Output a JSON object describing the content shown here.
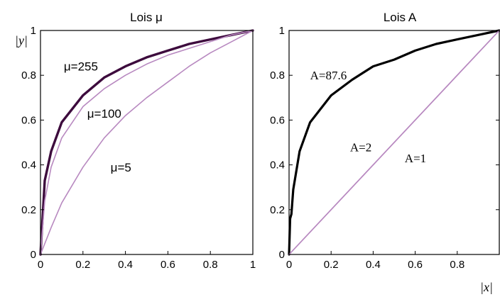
{
  "chart_data": [
    {
      "type": "line",
      "title": "Lois μ",
      "ylabel": "|y|",
      "xlabel": "",
      "xlim": [
        0,
        1
      ],
      "ylim": [
        0,
        1
      ],
      "xticks": [
        "0",
        "0.2",
        "0.4",
        "0.6",
        "0.8",
        "1"
      ],
      "yticks": [
        "0",
        "0.2",
        "0.4",
        "0.6",
        "0.8",
        "1"
      ],
      "grid": false,
      "series": [
        {
          "name": "μ=255",
          "mu": 255,
          "color": "#3d0b3d",
          "width": 3.4,
          "x": [
            0,
            0.02,
            0.05,
            0.1,
            0.2,
            0.3,
            0.4,
            0.5,
            0.6,
            0.7,
            0.8,
            0.9,
            1
          ],
          "y": [
            0,
            0.33,
            0.46,
            0.59,
            0.71,
            0.79,
            0.84,
            0.88,
            0.91,
            0.94,
            0.96,
            0.98,
            1
          ]
        },
        {
          "name": "μ=100",
          "mu": 100,
          "color": "#b889c0",
          "width": 1.6,
          "x": [
            0,
            0.02,
            0.05,
            0.1,
            0.2,
            0.3,
            0.4,
            0.5,
            0.6,
            0.7,
            0.8,
            0.9,
            1
          ],
          "y": [
            0,
            0.24,
            0.39,
            0.52,
            0.66,
            0.74,
            0.8,
            0.85,
            0.89,
            0.92,
            0.95,
            0.98,
            1
          ]
        },
        {
          "name": "μ=5",
          "mu": 5,
          "color": "#b889c0",
          "width": 1.6,
          "x": [
            0,
            0.05,
            0.1,
            0.2,
            0.3,
            0.4,
            0.5,
            0.6,
            0.7,
            0.8,
            0.9,
            1
          ],
          "y": [
            0,
            0.12,
            0.23,
            0.39,
            0.52,
            0.62,
            0.7,
            0.77,
            0.84,
            0.9,
            0.95,
            1
          ]
        }
      ],
      "annotations": [
        {
          "text": "μ=255",
          "x": 0.11,
          "y": 0.84
        },
        {
          "text": "μ=100",
          "x": 0.22,
          "y": 0.63
        },
        {
          "text": "μ=5",
          "x": 0.33,
          "y": 0.39
        }
      ]
    },
    {
      "type": "line",
      "title": "Lois A",
      "ylabel": "",
      "xlabel": "|x|",
      "xlim": [
        0,
        1
      ],
      "ylim": [
        0,
        1
      ],
      "xticks": [
        "0",
        "0.2",
        "0.4",
        "0.6",
        "0.8"
      ],
      "yticks": [
        "0",
        "0.2",
        "0.4",
        "0.6",
        "0.8",
        "1"
      ],
      "grid": false,
      "series": [
        {
          "name": "A=87.6",
          "A": 87.6,
          "color": "#000000",
          "width": 3.2,
          "x": [
            0,
            0.005,
            0.011,
            0.02,
            0.05,
            0.1,
            0.2,
            0.3,
            0.4,
            0.5,
            0.6,
            0.7,
            0.8,
            0.9,
            1
          ],
          "y": [
            0,
            0.16,
            0.18,
            0.29,
            0.46,
            0.59,
            0.71,
            0.78,
            0.84,
            0.87,
            0.91,
            0.94,
            0.96,
            0.98,
            1
          ]
        },
        {
          "name": "A=2",
          "A": 2,
          "color": "#b889c0",
          "width": 1.6,
          "x": [
            0,
            0.5,
            1
          ],
          "y": [
            0,
            0.5,
            1
          ]
        },
        {
          "name": "A=1",
          "A": 1,
          "color": "#b889c0",
          "width": 1.6,
          "x": [
            0,
            1
          ],
          "y": [
            0,
            1
          ]
        }
      ],
      "annotations": [
        {
          "text": "A=87.6",
          "x": 0.1,
          "y": 0.8
        },
        {
          "text": "A=2",
          "x": 0.29,
          "y": 0.48
        },
        {
          "text": "A=1",
          "x": 0.55,
          "y": 0.43
        }
      ]
    }
  ]
}
